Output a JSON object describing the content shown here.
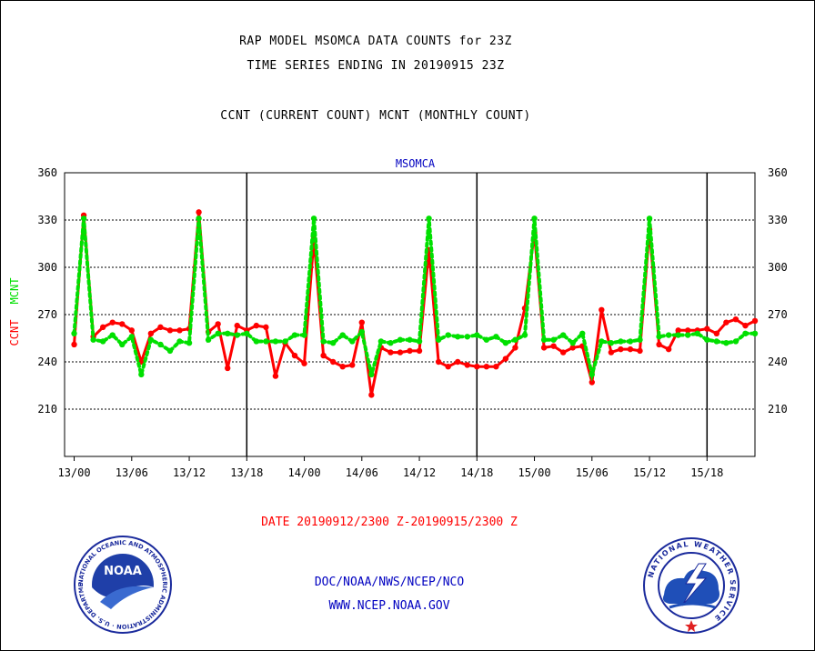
{
  "header": {
    "title_line1": "RAP MODEL MSOMCA DATA COUNTS for 23Z",
    "title_line2": "TIME SERIES ENDING IN 20190915 23Z",
    "title_line3": "CCNT (CURRENT COUNT) MCNT (MONTHLY COUNT)"
  },
  "footer": {
    "date_range": "DATE 20190912/2300 Z-20190915/2300 Z",
    "org_line": "DOC/NOAA/NWS/NCEP/NCO",
    "url_line": "WWW.NCEP.NOAA.GOV"
  },
  "logos": {
    "noaa_text": "NOAA",
    "noaa_ring_text": "NATIONAL OCEANIC AND ATMOSPHERIC ADMINISTRATION · U.S. DEPARTMENT OF COMMERCE ·",
    "nws_ring_text": "NATIONAL WEATHER SERVICE"
  },
  "colors": {
    "ccnt": "#ff0000",
    "mcnt": "#00e000",
    "axis_text": "#000000",
    "station_label": "#0000c0",
    "footer_blue": "#0000c0",
    "footer_red": "#ff0000"
  },
  "chart_data": {
    "type": "line",
    "title": "MSOMCA",
    "ylabel_red": "CCNT",
    "ylabel_green": "MCNT",
    "ylim": [
      180,
      360
    ],
    "yticks": [
      210,
      240,
      270,
      300,
      330,
      360
    ],
    "x_start_hour": -1,
    "x_end_hour": 71,
    "xticks": [
      {
        "hour": 0,
        "label": "13/00"
      },
      {
        "hour": 6,
        "label": "13/06"
      },
      {
        "hour": 12,
        "label": "13/12"
      },
      {
        "hour": 18,
        "label": "13/18"
      },
      {
        "hour": 24,
        "label": "14/00"
      },
      {
        "hour": 30,
        "label": "14/06"
      },
      {
        "hour": 36,
        "label": "14/12"
      },
      {
        "hour": 42,
        "label": "14/18"
      },
      {
        "hour": 48,
        "label": "15/00"
      },
      {
        "hour": 54,
        "label": "15/06"
      },
      {
        "hour": 60,
        "label": "15/12"
      },
      {
        "hour": 66,
        "label": "15/18"
      }
    ],
    "day_boundaries": [
      18,
      42,
      66
    ],
    "grid": true,
    "series": [
      {
        "name": "CCNT",
        "color": "#ff0000",
        "values": [
          251,
          333,
          256,
          262,
          265,
          264,
          260,
          240,
          258,
          262,
          260,
          260,
          261,
          335,
          259,
          264,
          236,
          263,
          260,
          263,
          262,
          231,
          252,
          244,
          239,
          318,
          244,
          240,
          237,
          238,
          265,
          219,
          249,
          246,
          246,
          247,
          247,
          311,
          240,
          237,
          240,
          238,
          237,
          237,
          237,
          242,
          249,
          274,
          322,
          249,
          250,
          246,
          249,
          250,
          227,
          273,
          246,
          248,
          248,
          247,
          324,
          251,
          248,
          260,
          260,
          260,
          261,
          258,
          265,
          267,
          263,
          266
        ]
      },
      {
        "name": "MCNT",
        "color": "#00e000",
        "values": [
          258,
          331,
          254,
          253,
          257,
          251,
          256,
          232,
          254,
          251,
          247,
          253,
          252,
          331,
          254,
          258,
          258,
          257,
          258,
          253,
          253,
          253,
          253,
          257,
          257,
          331,
          253,
          252,
          257,
          253,
          259,
          232,
          253,
          252,
          254,
          254,
          253,
          331,
          254,
          257,
          256,
          256,
          257,
          254,
          256,
          252,
          254,
          257,
          331,
          254,
          254,
          257,
          252,
          258,
          232,
          253,
          252,
          253,
          253,
          254,
          331,
          256,
          257,
          257,
          257,
          258,
          254,
          253,
          252,
          253,
          258,
          258
        ]
      }
    ]
  }
}
